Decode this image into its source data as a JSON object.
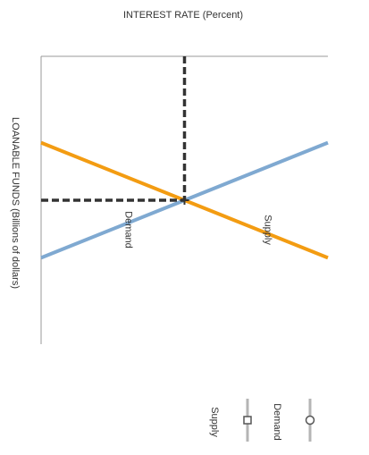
{
  "chart_data": {
    "type": "line",
    "title": "",
    "xlabel": "INTEREST RATE (Percent)",
    "ylabel": "LOANABLE FUNDS (Billions of dollars)",
    "grid": false,
    "series": [
      {
        "name": "Demand",
        "color": "#7fa9d1",
        "points": [
          [
            0,
            0.3
          ],
          [
            1,
            0.7
          ]
        ]
      },
      {
        "name": "Supply",
        "color": "#f39c12",
        "points": [
          [
            0,
            0.7
          ],
          [
            1,
            0.3
          ]
        ]
      }
    ],
    "equilibrium": {
      "x": 0.5,
      "y": 0.5,
      "guide_color": "#333333"
    },
    "legend": {
      "placement": "bottom-right",
      "items": [
        {
          "name": "Supply",
          "marker": "square"
        },
        {
          "name": "Demand",
          "marker": "circle"
        }
      ]
    }
  }
}
